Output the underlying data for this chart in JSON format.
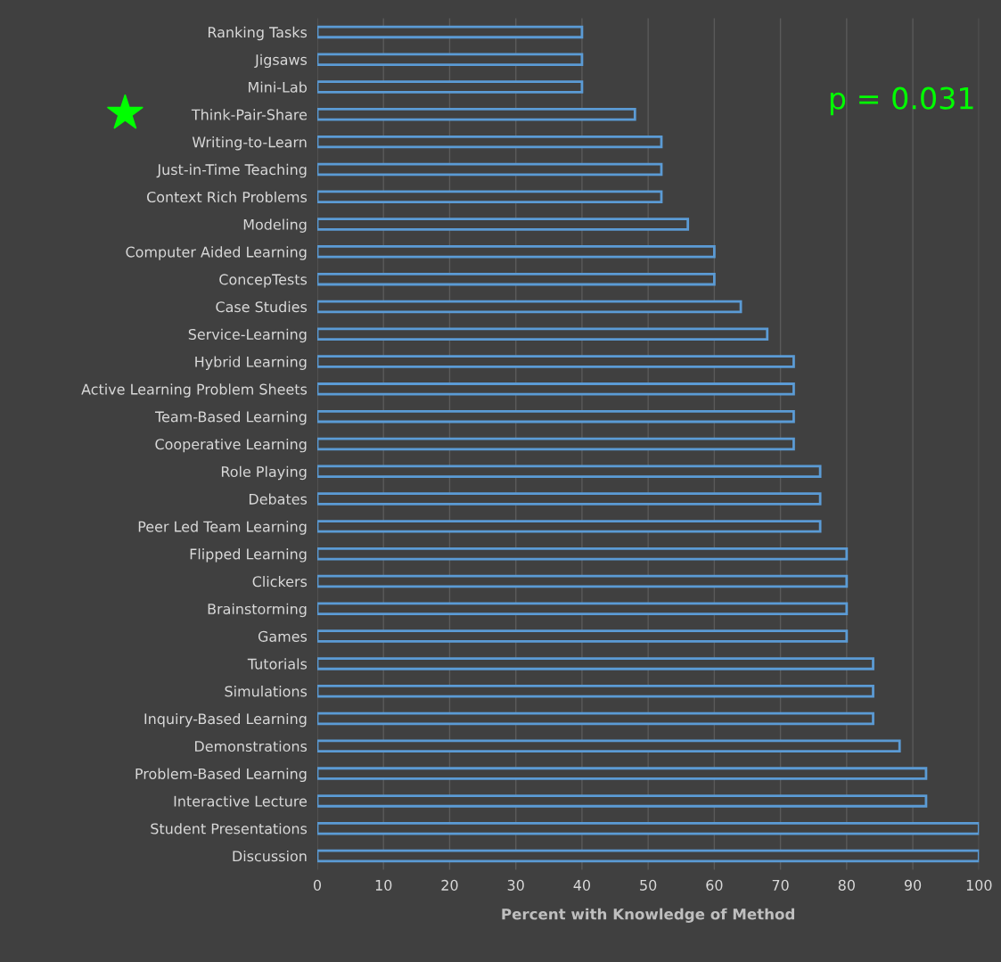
{
  "chart_data": {
    "type": "bar",
    "orientation": "horizontal",
    "xlabel": "Percent with Knowledge of Method",
    "categories": [
      "Ranking Tasks",
      "Jigsaws",
      "Mini-Lab",
      "Think-Pair-Share",
      "Writing-to-Learn",
      "Just-in-Time Teaching",
      "Context Rich Problems",
      "Modeling",
      "Computer Aided Learning",
      "ConcepTests",
      "Case Studies",
      "Service-Learning",
      "Hybrid Learning",
      "Active Learning Problem Sheets",
      "Team-Based Learning",
      "Cooperative Learning",
      "Role Playing",
      "Debates",
      "Peer Led Team Learning",
      "Flipped Learning",
      "Clickers",
      "Brainstorming",
      "Games",
      "Tutorials",
      "Simulations",
      "Inquiry-Based Learning",
      "Demonstrations",
      "Problem-Based Learning",
      "Interactive Lecture",
      "Student Presentations",
      "Discussion"
    ],
    "values": [
      40,
      40,
      40,
      48,
      52,
      52,
      52,
      56,
      60,
      60,
      64,
      68,
      72,
      72,
      72,
      72,
      76,
      76,
      76,
      80,
      80,
      80,
      80,
      84,
      84,
      84,
      88,
      92,
      92,
      100,
      100
    ],
    "color": "#5b9bd5",
    "xlim": [
      0,
      100
    ],
    "xticks": [
      0,
      10,
      20,
      30,
      40,
      50,
      60,
      70,
      80,
      90,
      100
    ],
    "grid": "x",
    "annotations": [
      "p = 0.031"
    ]
  }
}
